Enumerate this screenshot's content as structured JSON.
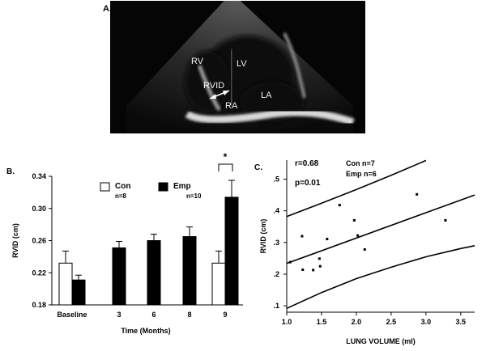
{
  "figure": {
    "panel_a": {
      "label": "A.",
      "anatomy_labels": [
        "RV",
        "LV",
        "RVID",
        "RA",
        "LA"
      ]
    },
    "panel_b": {
      "label": "B."
    },
    "panel_c": {
      "label": "C."
    }
  },
  "chart_data": [
    {
      "type": "bar",
      "ylabel": "RVID (cm)",
      "xlabel": "Time (Months)",
      "categories": [
        "Baseline",
        "3",
        "6",
        "8",
        "9"
      ],
      "series": [
        {
          "name": "Con",
          "values": [
            0.232,
            null,
            null,
            null,
            0.232
          ],
          "errors": [
            0.015,
            null,
            null,
            null,
            0.015
          ],
          "color": "#ffffff"
        },
        {
          "name": "Emp",
          "values": [
            0.211,
            0.251,
            0.26,
            0.265,
            0.314
          ],
          "errors": [
            0.006,
            0.008,
            0.008,
            0.012,
            0.021
          ],
          "color": "#000000"
        }
      ],
      "ylim": [
        0.18,
        0.34
      ],
      "yticks": [
        "0.18",
        "0.22",
        "0.26",
        "0.30",
        "0.34"
      ],
      "legend": [
        {
          "name": "Con",
          "n": "n=8"
        },
        {
          "name": "Emp",
          "n": "n=10"
        }
      ],
      "annotations": [
        "*"
      ]
    },
    {
      "type": "scatter",
      "ylabel": "RVID (cm)",
      "xlabel": "LUNG VOLUME (ml)",
      "xlim": [
        1.0,
        3.7
      ],
      "ylim": [
        0.08,
        0.56
      ],
      "xticks": [
        "1.0",
        "1.5",
        "2.0",
        "2.5",
        "3.0",
        "3.5"
      ],
      "yticks": [
        ".1",
        ".2",
        ".3",
        ".4",
        ".5"
      ],
      "stats": [
        "r=0.68",
        "p=0.01"
      ],
      "legend": [
        "Con n=7",
        "Emp n=6"
      ],
      "points": [
        {
          "x": 1.05,
          "y": 0.238
        },
        {
          "x": 1.22,
          "y": 0.32
        },
        {
          "x": 1.23,
          "y": 0.214
        },
        {
          "x": 1.38,
          "y": 0.213
        },
        {
          "x": 1.47,
          "y": 0.249
        },
        {
          "x": 1.48,
          "y": 0.225
        },
        {
          "x": 1.58,
          "y": 0.311
        },
        {
          "x": 1.76,
          "y": 0.418
        },
        {
          "x": 1.97,
          "y": 0.37
        },
        {
          "x": 2.02,
          "y": 0.322
        },
        {
          "x": 2.12,
          "y": 0.278
        },
        {
          "x": 2.87,
          "y": 0.452
        },
        {
          "x": 3.28,
          "y": 0.37
        }
      ],
      "regression": {
        "intercept": 0.154,
        "slope": 0.08
      },
      "ci_upper": [
        [
          1.0,
          0.382
        ],
        [
          1.5,
          0.424
        ],
        [
          2.0,
          0.467
        ],
        [
          2.5,
          0.512
        ],
        [
          3.0,
          0.559
        ]
      ],
      "ci_lower": [
        [
          1.0,
          0.092
        ],
        [
          1.5,
          0.142
        ],
        [
          2.0,
          0.186
        ],
        [
          2.5,
          0.222
        ],
        [
          3.0,
          0.255
        ],
        [
          3.5,
          0.281
        ],
        [
          3.7,
          0.29
        ]
      ]
    }
  ]
}
